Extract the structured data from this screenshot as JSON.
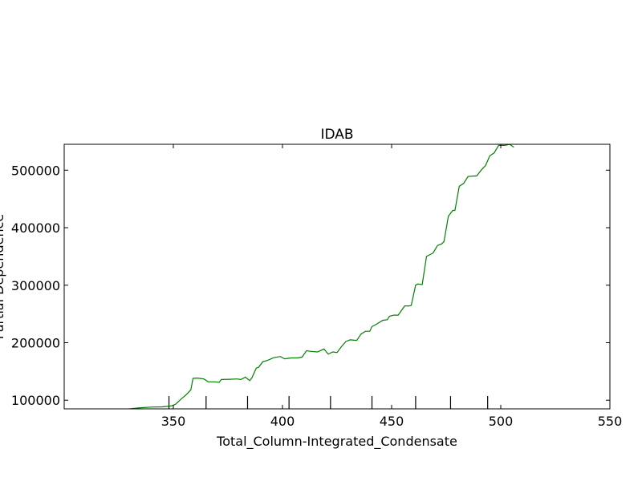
{
  "chart_data": {
    "type": "line",
    "title": "IDAB",
    "xlabel": "Total_Column-Integrated_Condensate",
    "ylabel": "Partial Dependence",
    "xlim": [
      300,
      550
    ],
    "ylim": [
      85000,
      545000
    ],
    "xticks": [
      350,
      400,
      450,
      500,
      550
    ],
    "xtick_labels": [
      "350",
      "400",
      "450",
      "500",
      "550"
    ],
    "yticks": [
      100000,
      200000,
      300000,
      400000,
      500000
    ],
    "ytick_labels": [
      "100000",
      "200000",
      "300000",
      "400000",
      "500000"
    ],
    "rug_x": [
      348,
      365,
      384,
      403,
      422,
      441,
      461,
      477,
      494
    ],
    "grid": false,
    "legend": "none",
    "series": [
      {
        "color": "#008000",
        "x": [
          303,
          310,
          320,
          330,
          335,
          340,
          345,
          349,
          351,
          353,
          356,
          358,
          359,
          361,
          364,
          366,
          369,
          371,
          372,
          376,
          379,
          381,
          383,
          385,
          386,
          388,
          389,
          391,
          393,
          396,
          399,
          401,
          404,
          407,
          409,
          411,
          413,
          416,
          419,
          421,
          423,
          425,
          427,
          429,
          431,
          434,
          436,
          438,
          440,
          441,
          443,
          446,
          448,
          449,
          451,
          453,
          456,
          458,
          459,
          461,
          462,
          464,
          466,
          469,
          471,
          473,
          474,
          476,
          478,
          479,
          481,
          483,
          485,
          488,
          489,
          491,
          493,
          495,
          497,
          499,
          502,
          504,
          506
        ],
        "y": [
          75000,
          78000,
          82000,
          85000,
          87000,
          88000,
          88500,
          90000,
          93000,
          100000,
          110000,
          118000,
          138000,
          138500,
          137000,
          132000,
          132000,
          131000,
          136000,
          136500,
          137000,
          136000,
          140000,
          134000,
          139000,
          156000,
          157000,
          167000,
          169000,
          174000,
          176000,
          172000,
          173500,
          173500,
          175000,
          186000,
          185000,
          184000,
          189000,
          180000,
          184000,
          183000,
          193000,
          202000,
          205000,
          204000,
          215000,
          220000,
          220000,
          228000,
          232000,
          239000,
          240000,
          246000,
          248000,
          248000,
          264000,
          264000,
          265000,
          300000,
          302000,
          301000,
          350000,
          356000,
          369000,
          372000,
          376000,
          420000,
          430000,
          430000,
          472000,
          477000,
          489000,
          490000,
          490000,
          500000,
          508000,
          525000,
          530000,
          543000,
          543000,
          545000,
          540000
        ]
      }
    ]
  }
}
